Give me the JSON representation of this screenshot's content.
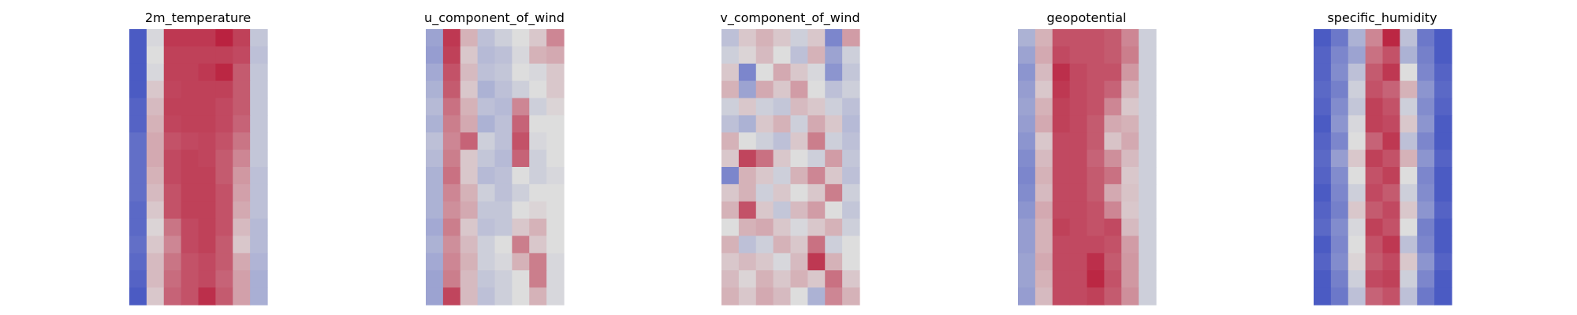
{
  "chart_data": {
    "type": "heatmap",
    "axes": "off",
    "colormap": "coolwarm",
    "colormap_stops": [
      "#3b4cc0",
      "#dddddd",
      "#b40426"
    ],
    "panels": [
      {
        "title": "2m_temperature",
        "grid_rows": 16,
        "grid_cols": 8,
        "values": [
          [
            0.05,
            0.48,
            0.88,
            0.88,
            0.88,
            0.93,
            0.86,
            0.42
          ],
          [
            0.05,
            0.5,
            0.86,
            0.86,
            0.86,
            0.86,
            0.84,
            0.4
          ],
          [
            0.05,
            0.48,
            0.86,
            0.86,
            0.88,
            0.92,
            0.8,
            0.42
          ],
          [
            0.05,
            0.55,
            0.85,
            0.86,
            0.86,
            0.86,
            0.8,
            0.42
          ],
          [
            0.08,
            0.58,
            0.86,
            0.86,
            0.86,
            0.84,
            0.8,
            0.42
          ],
          [
            0.08,
            0.6,
            0.85,
            0.86,
            0.86,
            0.84,
            0.78,
            0.42
          ],
          [
            0.12,
            0.62,
            0.82,
            0.84,
            0.85,
            0.82,
            0.74,
            0.42
          ],
          [
            0.12,
            0.62,
            0.84,
            0.86,
            0.85,
            0.8,
            0.7,
            0.42
          ],
          [
            0.12,
            0.6,
            0.84,
            0.86,
            0.86,
            0.8,
            0.66,
            0.4
          ],
          [
            0.12,
            0.58,
            0.82,
            0.86,
            0.86,
            0.82,
            0.64,
            0.4
          ],
          [
            0.1,
            0.55,
            0.82,
            0.86,
            0.86,
            0.82,
            0.62,
            0.4
          ],
          [
            0.1,
            0.52,
            0.74,
            0.84,
            0.86,
            0.82,
            0.58,
            0.38
          ],
          [
            0.12,
            0.55,
            0.7,
            0.84,
            0.86,
            0.8,
            0.55,
            0.38
          ],
          [
            0.1,
            0.58,
            0.74,
            0.82,
            0.84,
            0.8,
            0.62,
            0.36
          ],
          [
            0.08,
            0.58,
            0.76,
            0.82,
            0.84,
            0.78,
            0.64,
            0.34
          ],
          [
            0.05,
            0.55,
            0.78,
            0.82,
            0.9,
            0.8,
            0.64,
            0.34
          ]
        ]
      },
      {
        "title": "u_component_of_wind",
        "grid_rows": 16,
        "grid_cols": 8,
        "values": [
          [
            0.3,
            0.88,
            0.6,
            0.4,
            0.45,
            0.5,
            0.55,
            0.7
          ],
          [
            0.28,
            0.86,
            0.55,
            0.38,
            0.4,
            0.48,
            0.6,
            0.62
          ],
          [
            0.32,
            0.82,
            0.58,
            0.4,
            0.42,
            0.5,
            0.48,
            0.55
          ],
          [
            0.35,
            0.8,
            0.55,
            0.35,
            0.4,
            0.45,
            0.5,
            0.55
          ],
          [
            0.38,
            0.75,
            0.6,
            0.4,
            0.38,
            0.7,
            0.45,
            0.52
          ],
          [
            0.35,
            0.72,
            0.62,
            0.35,
            0.4,
            0.78,
            0.5,
            0.5
          ],
          [
            0.4,
            0.7,
            0.78,
            0.45,
            0.4,
            0.82,
            0.48,
            0.5
          ],
          [
            0.38,
            0.72,
            0.55,
            0.42,
            0.38,
            0.78,
            0.45,
            0.5
          ],
          [
            0.35,
            0.75,
            0.55,
            0.38,
            0.4,
            0.5,
            0.45,
            0.48
          ],
          [
            0.35,
            0.7,
            0.6,
            0.45,
            0.4,
            0.45,
            0.5,
            0.5
          ],
          [
            0.35,
            0.68,
            0.62,
            0.42,
            0.42,
            0.5,
            0.52,
            0.5
          ],
          [
            0.32,
            0.72,
            0.55,
            0.4,
            0.42,
            0.55,
            0.6,
            0.5
          ],
          [
            0.35,
            0.68,
            0.58,
            0.45,
            0.5,
            0.72,
            0.55,
            0.5
          ],
          [
            0.32,
            0.7,
            0.6,
            0.45,
            0.48,
            0.6,
            0.72,
            0.48
          ],
          [
            0.3,
            0.72,
            0.58,
            0.42,
            0.45,
            0.5,
            0.72,
            0.48
          ],
          [
            0.3,
            0.85,
            0.58,
            0.4,
            0.45,
            0.5,
            0.6,
            0.48
          ]
        ]
      },
      {
        "title": "v_component_of_wind",
        "grid_rows": 16,
        "grid_cols": 8,
        "values": [
          [
            0.4,
            0.55,
            0.6,
            0.55,
            0.45,
            0.55,
            0.2,
            0.65
          ],
          [
            0.45,
            0.52,
            0.58,
            0.5,
            0.4,
            0.6,
            0.3,
            0.45
          ],
          [
            0.55,
            0.2,
            0.5,
            0.62,
            0.55,
            0.48,
            0.25,
            0.42
          ],
          [
            0.6,
            0.3,
            0.62,
            0.55,
            0.65,
            0.5,
            0.4,
            0.45
          ],
          [
            0.45,
            0.55,
            0.45,
            0.42,
            0.58,
            0.55,
            0.45,
            0.4
          ],
          [
            0.4,
            0.35,
            0.55,
            0.6,
            0.45,
            0.62,
            0.55,
            0.38
          ],
          [
            0.6,
            0.5,
            0.45,
            0.4,
            0.55,
            0.72,
            0.45,
            0.4
          ],
          [
            0.55,
            0.85,
            0.75,
            0.55,
            0.5,
            0.45,
            0.65,
            0.42
          ],
          [
            0.2,
            0.6,
            0.55,
            0.45,
            0.6,
            0.7,
            0.55,
            0.4
          ],
          [
            0.55,
            0.6,
            0.45,
            0.55,
            0.5,
            0.55,
            0.72,
            0.45
          ],
          [
            0.6,
            0.82,
            0.55,
            0.42,
            0.58,
            0.65,
            0.5,
            0.42
          ],
          [
            0.5,
            0.6,
            0.62,
            0.55,
            0.48,
            0.55,
            0.6,
            0.45
          ],
          [
            0.6,
            0.4,
            0.45,
            0.6,
            0.55,
            0.75,
            0.45,
            0.5
          ],
          [
            0.55,
            0.58,
            0.55,
            0.48,
            0.58,
            0.88,
            0.6,
            0.5
          ],
          [
            0.58,
            0.52,
            0.6,
            0.55,
            0.6,
            0.55,
            0.75,
            0.55
          ],
          [
            0.6,
            0.55,
            0.62,
            0.58,
            0.5,
            0.35,
            0.7,
            0.6
          ]
        ]
      },
      {
        "title": "geopotential",
        "grid_rows": 16,
        "grid_cols": 8,
        "values": [
          [
            0.35,
            0.6,
            0.82,
            0.82,
            0.82,
            0.8,
            0.7,
            0.45
          ],
          [
            0.3,
            0.62,
            0.84,
            0.82,
            0.82,
            0.8,
            0.72,
            0.45
          ],
          [
            0.25,
            0.58,
            0.9,
            0.84,
            0.82,
            0.82,
            0.66,
            0.45
          ],
          [
            0.28,
            0.55,
            0.88,
            0.84,
            0.82,
            0.78,
            0.6,
            0.45
          ],
          [
            0.3,
            0.6,
            0.86,
            0.84,
            0.82,
            0.7,
            0.55,
            0.45
          ],
          [
            0.28,
            0.62,
            0.86,
            0.84,
            0.8,
            0.62,
            0.6,
            0.45
          ],
          [
            0.25,
            0.55,
            0.84,
            0.84,
            0.8,
            0.56,
            0.62,
            0.45
          ],
          [
            0.22,
            0.58,
            0.84,
            0.84,
            0.78,
            0.68,
            0.58,
            0.45
          ],
          [
            0.2,
            0.6,
            0.84,
            0.84,
            0.8,
            0.75,
            0.55,
            0.45
          ],
          [
            0.22,
            0.58,
            0.84,
            0.84,
            0.8,
            0.62,
            0.56,
            0.45
          ],
          [
            0.25,
            0.62,
            0.84,
            0.84,
            0.82,
            0.7,
            0.55,
            0.45
          ],
          [
            0.28,
            0.6,
            0.86,
            0.84,
            0.82,
            0.84,
            0.58,
            0.45
          ],
          [
            0.28,
            0.6,
            0.84,
            0.84,
            0.84,
            0.82,
            0.65,
            0.45
          ],
          [
            0.3,
            0.62,
            0.84,
            0.84,
            0.9,
            0.8,
            0.66,
            0.45
          ],
          [
            0.3,
            0.6,
            0.84,
            0.84,
            0.92,
            0.82,
            0.66,
            0.45
          ],
          [
            0.28,
            0.58,
            0.84,
            0.84,
            0.86,
            0.8,
            0.68,
            0.45
          ]
        ]
      },
      {
        "title": "specific_humidity",
        "grid_rows": 16,
        "grid_cols": 8,
        "values": [
          [
            0.05,
            0.15,
            0.35,
            0.7,
            0.92,
            0.4,
            0.15,
            0.05
          ],
          [
            0.08,
            0.2,
            0.3,
            0.75,
            0.82,
            0.35,
            0.18,
            0.05
          ],
          [
            0.08,
            0.22,
            0.4,
            0.8,
            0.88,
            0.5,
            0.2,
            0.08
          ],
          [
            0.1,
            0.18,
            0.45,
            0.82,
            0.78,
            0.6,
            0.25,
            0.1
          ],
          [
            0.08,
            0.22,
            0.42,
            0.86,
            0.82,
            0.45,
            0.22,
            0.08
          ],
          [
            0.05,
            0.25,
            0.48,
            0.86,
            0.84,
            0.55,
            0.25,
            0.05
          ],
          [
            0.08,
            0.2,
            0.5,
            0.78,
            0.88,
            0.4,
            0.2,
            0.05
          ],
          [
            0.1,
            0.28,
            0.55,
            0.86,
            0.82,
            0.6,
            0.25,
            0.08
          ],
          [
            0.08,
            0.22,
            0.5,
            0.82,
            0.86,
            0.5,
            0.2,
            0.05
          ],
          [
            0.05,
            0.2,
            0.45,
            0.84,
            0.8,
            0.45,
            0.22,
            0.05
          ],
          [
            0.08,
            0.18,
            0.55,
            0.8,
            0.84,
            0.55,
            0.25,
            0.08
          ],
          [
            0.1,
            0.22,
            0.48,
            0.86,
            0.82,
            0.5,
            0.18,
            0.05
          ],
          [
            0.05,
            0.2,
            0.5,
            0.82,
            0.88,
            0.4,
            0.2,
            0.05
          ],
          [
            0.08,
            0.22,
            0.52,
            0.8,
            0.84,
            0.55,
            0.25,
            0.08
          ],
          [
            0.05,
            0.18,
            0.45,
            0.84,
            0.86,
            0.45,
            0.2,
            0.05
          ],
          [
            0.05,
            0.15,
            0.4,
            0.78,
            0.82,
            0.4,
            0.15,
            0.05
          ]
        ]
      }
    ]
  }
}
